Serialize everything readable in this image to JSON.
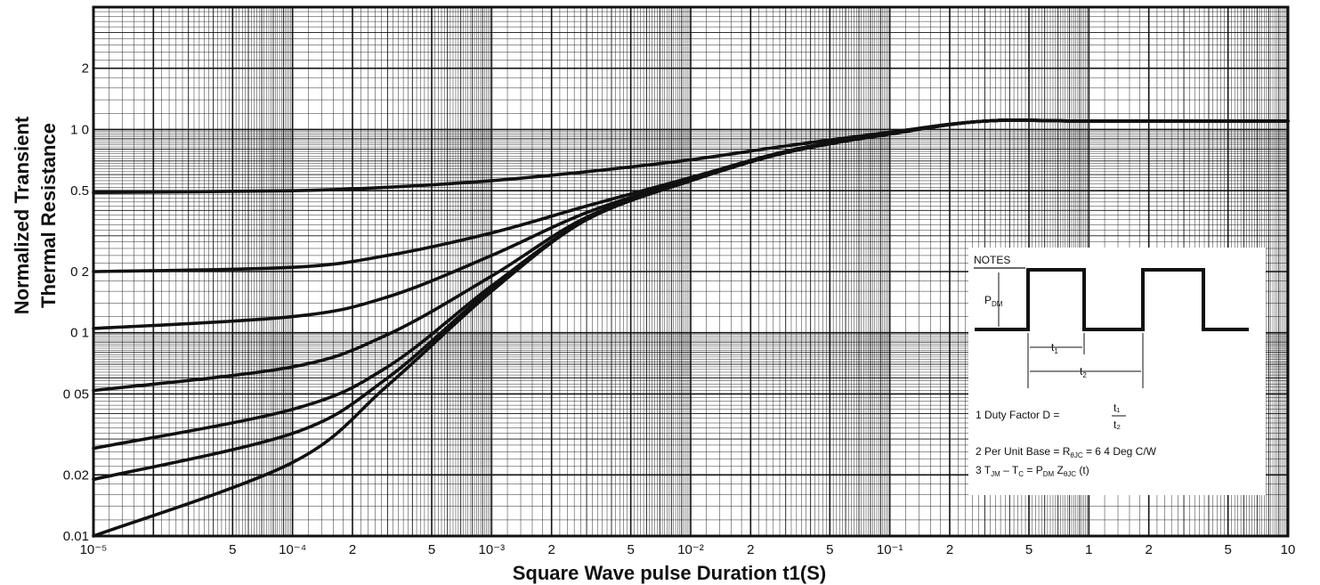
{
  "chart_data": {
    "type": "line",
    "title": "",
    "xlabel": "Square Wave pulse Duration t1(S)",
    "ylabel_lines": [
      "Normalized Transient",
      "Thermal Resistance"
    ],
    "x_scale": "log",
    "y_scale": "log",
    "xlim": [
      1e-05,
      10
    ],
    "ylim": [
      0.01,
      4
    ],
    "grid": true,
    "x_ticks": [
      {
        "value": 1e-05,
        "label": "10⁻⁵"
      },
      {
        "value": 5e-05,
        "label": "5"
      },
      {
        "value": 0.0001,
        "label": "10⁻⁴"
      },
      {
        "value": 0.0002,
        "label": "2"
      },
      {
        "value": 0.0005,
        "label": "5"
      },
      {
        "value": 0.001,
        "label": "10⁻³"
      },
      {
        "value": 0.002,
        "label": "2"
      },
      {
        "value": 0.005,
        "label": "5"
      },
      {
        "value": 0.01,
        "label": "10⁻²"
      },
      {
        "value": 0.02,
        "label": "2"
      },
      {
        "value": 0.05,
        "label": "5"
      },
      {
        "value": 0.1,
        "label": "10⁻¹"
      },
      {
        "value": 0.2,
        "label": "2"
      },
      {
        "value": 0.5,
        "label": "5"
      },
      {
        "value": 1,
        "label": "1"
      },
      {
        "value": 2,
        "label": "2"
      },
      {
        "value": 5,
        "label": "5"
      },
      {
        "value": 10,
        "label": "10"
      }
    ],
    "y_ticks": [
      {
        "value": 0.01,
        "label": "0.01"
      },
      {
        "value": 0.02,
        "label": "0.02"
      },
      {
        "value": 0.05,
        "label": "0 05"
      },
      {
        "value": 0.1,
        "label": "0 1"
      },
      {
        "value": 0.2,
        "label": "0 2"
      },
      {
        "value": 0.5,
        "label": "0.5"
      },
      {
        "value": 1,
        "label": "1 0"
      },
      {
        "value": 2,
        "label": "2"
      }
    ],
    "series": [
      {
        "x": [
          1e-05,
          0.0001,
          0.0003,
          0.001,
          0.003,
          0.01,
          0.03,
          0.1,
          0.3,
          1,
          10
        ],
        "values": [
          0.49,
          0.5,
          0.52,
          0.56,
          0.62,
          0.71,
          0.83,
          0.97,
          1.1,
          1.1,
          1.1
        ]
      },
      {
        "x": [
          1e-05,
          0.0001,
          0.0003,
          0.001,
          0.003,
          0.01,
          0.03,
          0.1,
          0.3,
          1,
          10
        ],
        "values": [
          0.2,
          0.21,
          0.24,
          0.31,
          0.42,
          0.58,
          0.78,
          0.96,
          1.1,
          1.1,
          1.1
        ]
      },
      {
        "x": [
          1e-05,
          0.0001,
          0.0003,
          0.001,
          0.003,
          0.01,
          0.03,
          0.1,
          0.3,
          1,
          10
        ],
        "values": [
          0.105,
          0.12,
          0.15,
          0.24,
          0.39,
          0.57,
          0.78,
          0.96,
          1.1,
          1.1,
          1.1
        ]
      },
      {
        "x": [
          1e-05,
          0.0001,
          0.0003,
          0.001,
          0.003,
          0.01,
          0.03,
          0.1,
          0.3,
          1,
          10
        ],
        "values": [
          0.052,
          0.068,
          0.098,
          0.19,
          0.37,
          0.56,
          0.77,
          0.95,
          1.1,
          1.1,
          1.1
        ]
      },
      {
        "x": [
          1e-05,
          0.0001,
          0.0003,
          0.001,
          0.003,
          0.01,
          0.03,
          0.1,
          0.3,
          1,
          10
        ],
        "values": [
          0.027,
          0.042,
          0.068,
          0.17,
          0.36,
          0.56,
          0.77,
          0.95,
          1.1,
          1.1,
          1.1
        ]
      },
      {
        "x": [
          1e-05,
          0.0001,
          0.0003,
          0.001,
          0.003,
          0.01,
          0.03,
          0.1,
          0.3,
          1,
          10
        ],
        "values": [
          0.019,
          0.032,
          0.06,
          0.165,
          0.36,
          0.56,
          0.77,
          0.95,
          1.1,
          1.1,
          1.1
        ]
      },
      {
        "x": [
          1e-05,
          0.0001,
          0.0003,
          0.001,
          0.003,
          0.01,
          0.03,
          0.1,
          0.3,
          1,
          10
        ],
        "values": [
          0.01,
          0.023,
          0.055,
          0.16,
          0.36,
          0.56,
          0.77,
          0.95,
          1.1,
          1.1,
          1.1
        ]
      }
    ]
  },
  "notes": {
    "heading": "NOTES",
    "pdm_label": "P",
    "pdm_sub": "DM",
    "t1_label": "t",
    "t1_sub": "1",
    "t2_label": "t",
    "t2_sub": "2",
    "note1": "1   Duty Factor  D =",
    "note1_frac_top": "t₁",
    "note1_frac_bottom": "t₂",
    "note2": "2   Per Unit Base = R",
    "note2_sub": "θJC",
    "note2_tail": " = 6 4  Deg  C/W",
    "note3": "3   T",
    "note3_sub1": "JM",
    "note3_mid": " – T",
    "note3_sub2": "C",
    "note3_mid2": " = P",
    "note3_sub3": "DM",
    "note3_mid3": " Z",
    "note3_sub4": "θJC",
    "note3_tail": " (t)"
  }
}
